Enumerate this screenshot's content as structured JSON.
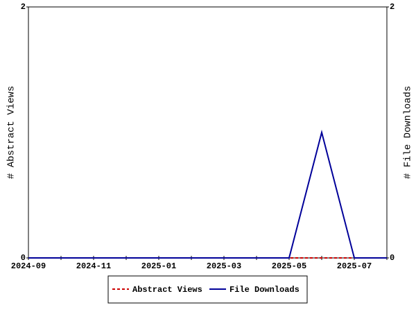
{
  "chart_data": {
    "type": "line",
    "categories": [
      "2024-09",
      null,
      "2024-11",
      null,
      "2025-01",
      null,
      "2025-03",
      null,
      "2025-05",
      null,
      "2025-07",
      null
    ],
    "series": [
      {
        "name": "Abstract Views",
        "color": "#cc0000",
        "dash": true,
        "values": [
          0,
          0,
          0,
          0,
          0,
          0,
          0,
          0,
          0,
          0,
          0,
          0
        ]
      },
      {
        "name": "File Downloads",
        "color": "#000099",
        "axis": "y2",
        "values": [
          0,
          0,
          0,
          0,
          0,
          0,
          0,
          0,
          0,
          1,
          0,
          0
        ]
      }
    ],
    "ylabel": "# Abstract Views",
    "y2label": "# File Downloads",
    "ylim": [
      0,
      2
    ],
    "yticks": [
      0,
      2
    ],
    "y2lim": [
      0,
      2
    ],
    "y2ticks": [
      0,
      2
    ],
    "legend": "bottom"
  }
}
